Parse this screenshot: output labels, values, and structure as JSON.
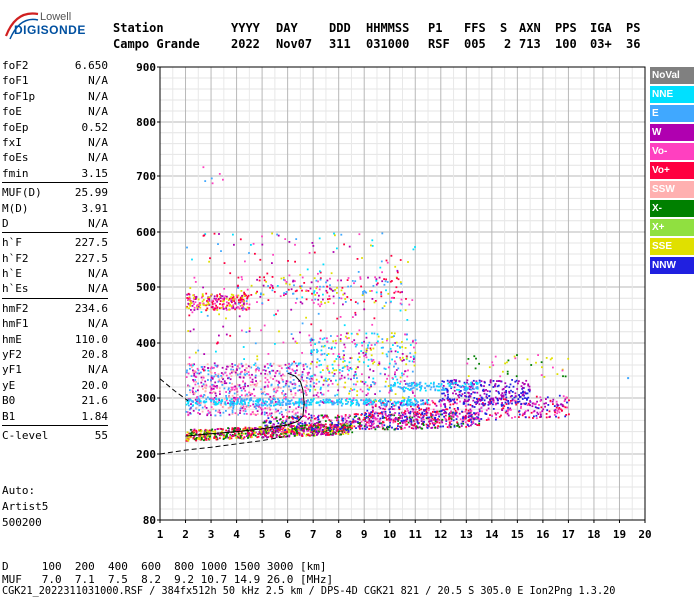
{
  "logo": {
    "top": "Lowell",
    "main": "DIGISONDE"
  },
  "header": {
    "row1": [
      "Station",
      "YYYY",
      "DAY",
      "DDD",
      "HHMMSS",
      "P1",
      "FFS",
      "S",
      "AXN",
      "PPS",
      "IGA",
      "PS"
    ],
    "row2": [
      "Campo Grande",
      "2022",
      "Nov07",
      "311",
      "031000",
      "RSF",
      "005",
      "2",
      "713",
      "100",
      "03+",
      "36"
    ]
  },
  "params": {
    "group1": [
      {
        "k": "foF2",
        "v": "6.650"
      },
      {
        "k": "foF1",
        "v": "N/A"
      },
      {
        "k": "foF1p",
        "v": "N/A"
      },
      {
        "k": "foE",
        "v": "N/A"
      },
      {
        "k": "foEp",
        "v": "0.52"
      },
      {
        "k": "fxI",
        "v": "N/A"
      },
      {
        "k": "foEs",
        "v": "N/A"
      },
      {
        "k": "fmin",
        "v": "3.15"
      }
    ],
    "group2": [
      {
        "k": "MUF(D)",
        "v": "25.99"
      },
      {
        "k": "M(D)",
        "v": "3.91"
      },
      {
        "k": "D",
        "v": "N/A"
      }
    ],
    "group3": [
      {
        "k": "h`F",
        "v": "227.5"
      },
      {
        "k": "h`F2",
        "v": "227.5"
      },
      {
        "k": "h`E",
        "v": "N/A"
      },
      {
        "k": "h`Es",
        "v": "N/A"
      }
    ],
    "group4": [
      {
        "k": "hmF2",
        "v": "234.6"
      },
      {
        "k": "hmF1",
        "v": "N/A"
      },
      {
        "k": "hmE",
        "v": "110.0"
      },
      {
        "k": "yF2",
        "v": "20.8"
      },
      {
        "k": "yF1",
        "v": "N/A"
      },
      {
        "k": "yE",
        "v": "20.0"
      },
      {
        "k": "B0",
        "v": "21.6"
      },
      {
        "k": "B1",
        "v": "1.84"
      }
    ],
    "group5": [
      {
        "k": "C-level",
        "v": "55"
      }
    ]
  },
  "auto": {
    "line1": "Auto:",
    "line2": "Artist5",
    "line3": "500200"
  },
  "legend": [
    {
      "label": "NoVal",
      "color": "#808080"
    },
    {
      "label": "NNE",
      "color": "#00e0ff"
    },
    {
      "label": "E",
      "color": "#40a8ff"
    },
    {
      "label": "W",
      "color": "#b000b0"
    },
    {
      "label": "Vo-",
      "color": "#ff40c0"
    },
    {
      "label": "Vo+",
      "color": "#ff0040"
    },
    {
      "label": "SSW",
      "color": "#ffb0b0"
    },
    {
      "label": "X-",
      "color": "#008000"
    },
    {
      "label": "X+",
      "color": "#90e040"
    },
    {
      "label": "SSE",
      "color": "#e0e000"
    },
    {
      "label": "NNW",
      "color": "#2020e0"
    }
  ],
  "footer": {
    "line1": "D     100  200  400  600  800 1000 1500 3000 [km]",
    "line2": "MUF   7.0  7.1  7.5  8.2  9.2 10.7 14.9 26.0 [MHz]",
    "line3": "CGK21_2022311031000.RSF / 384fx512h 50 kHz 2.5 km / DPS-4D CGK21 821 / 20.5 S 305.0 E Ion2Png 1.3.20"
  },
  "chart_data": {
    "type": "scatter",
    "title": "",
    "xlabel": "",
    "ylabel": "",
    "xlim": [
      1,
      20
    ],
    "ylim": [
      80,
      900
    ],
    "xticks": [
      "1",
      "2",
      "3",
      "4",
      "5",
      "6",
      "7",
      "8",
      "9",
      "10",
      "11",
      "12",
      "13",
      "14",
      "15",
      "16",
      "17",
      "18",
      "19",
      "20"
    ],
    "yticks": [
      "80",
      "200",
      "300",
      "400",
      "500",
      "600",
      "700",
      "800",
      "900"
    ],
    "grid": true,
    "clusters": [
      {
        "x": [
          2.0,
          8.5
        ],
        "y": [
          225,
          245
        ],
        "colors": [
          "#ff0040",
          "#e0e000",
          "#b000b0",
          "#008000"
        ],
        "n": 750
      },
      {
        "x": [
          5.0,
          13.5
        ],
        "y": [
          238,
          268
        ],
        "colors": [
          "#ff0040",
          "#008000",
          "#b000b0",
          "#ff40c0",
          "#2020e0"
        ],
        "n": 650
      },
      {
        "x": [
          9.0,
          17.0
        ],
        "y": [
          255,
          295
        ],
        "colors": [
          "#b000b0",
          "#2020e0",
          "#ff40c0",
          "#ff0040"
        ],
        "n": 450
      },
      {
        "x": [
          12.0,
          15.5
        ],
        "y": [
          290,
          335
        ],
        "colors": [
          "#2020e0",
          "#b000b0"
        ],
        "n": 260
      },
      {
        "x": [
          2.0,
          6.8
        ],
        "y": [
          270,
          365
        ],
        "colors": [
          "#ffb0b0",
          "#ff40c0",
          "#40a8ff",
          "#b000b0"
        ],
        "n": 700
      },
      {
        "x": [
          6.8,
          11.0
        ],
        "y": [
          290,
          420
        ],
        "colors": [
          "#40a8ff",
          "#b000b0",
          "#e0e000",
          "#00e0ff",
          "#ff40c0"
        ],
        "n": 400
      },
      {
        "x": [
          2.0,
          11.5
        ],
        "y": [
          288,
          300
        ],
        "colors": [
          "#00e0ff",
          "#40a8ff"
        ],
        "n": 350
      },
      {
        "x": [
          10.0,
          13.5
        ],
        "y": [
          315,
          330
        ],
        "colors": [
          "#00e0ff",
          "#40a8ff"
        ],
        "n": 120
      },
      {
        "x": [
          2.0,
          4.5
        ],
        "y": [
          460,
          490
        ],
        "colors": [
          "#ff0040",
          "#ff40c0",
          "#e0e000",
          "#b000b0"
        ],
        "n": 220
      },
      {
        "x": [
          4.0,
          10.5
        ],
        "y": [
          470,
          520
        ],
        "colors": [
          "#ff40c0",
          "#ff0040",
          "#e0e000",
          "#40a8ff",
          "#b000b0"
        ],
        "n": 170
      },
      {
        "x": [
          2.0,
          11.0
        ],
        "y": [
          350,
          600
        ],
        "colors": [
          "#ff40c0",
          "#b000b0",
          "#e0e000",
          "#40a8ff",
          "#ff0040",
          "#00e0ff"
        ],
        "n": 230
      },
      {
        "x": [
          13.0,
          17.0
        ],
        "y": [
          340,
          380
        ],
        "colors": [
          "#ff40c0",
          "#008000",
          "#e0e000"
        ],
        "n": 40
      },
      {
        "x": [
          2.5,
          3.5
        ],
        "y": [
          680,
          730
        ],
        "colors": [
          "#ff40c0",
          "#40a8ff"
        ],
        "n": 6
      }
    ],
    "profile_solid": {
      "x": [
        2.0,
        3.0,
        4.0,
        5.0,
        6.0,
        6.4,
        6.6,
        6.65,
        6.6,
        6.5,
        6.3,
        6.0
      ],
      "y": [
        232,
        236,
        240,
        245,
        252,
        258,
        268,
        290,
        315,
        330,
        340,
        345
      ]
    },
    "profile_dashed": {
      "x": [
        1.0,
        2.0,
        3.0,
        4.0,
        5.0,
        6.0
      ],
      "y": [
        200,
        207,
        212,
        218,
        224,
        232
      ]
    },
    "profile_dashed_upper": {
      "x": [
        1.0,
        1.6,
        2.1
      ],
      "y": [
        335,
        312,
        295
      ]
    },
    "markers": [
      {
        "x": 19.3,
        "y": 338,
        "color": "#40a8ff"
      }
    ]
  }
}
